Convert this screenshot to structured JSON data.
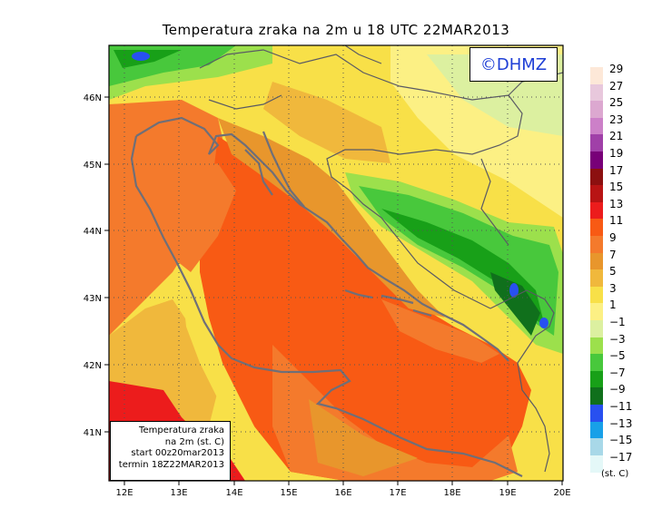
{
  "title": "Temperatura zraka na 2m u 18 UTC 22MAR2013",
  "logo": "©DHMZ",
  "info_box": {
    "lines": [
      "Temperatura zraka",
      "na 2m (st. C)",
      "start 00z20mar2013",
      "termin 18Z22MAR2013"
    ]
  },
  "legend": {
    "labels": [
      "29",
      "27",
      "25",
      "23",
      "21",
      "19",
      "17",
      "15",
      "13",
      "11",
      "9",
      "7",
      "5",
      "3",
      "1",
      "−1",
      "−3",
      "−5",
      "−7",
      "−9",
      "−11",
      "−13",
      "−15",
      "−17"
    ],
    "colors": [
      "#fde8d8",
      "#e8c8dc",
      "#dca8d0",
      "#cc80c8",
      "#a040a8",
      "#780078",
      "#8c1010",
      "#b81414",
      "#ec1c1c",
      "#f85a14",
      "#f47a2c",
      "#e8962c",
      "#f0b83c",
      "#f8e048",
      "#fcf084",
      "#dcf0a0",
      "#9ce04c",
      "#48c83c",
      "#18a018",
      "#10701c",
      "#2850f0",
      "#18a0e8",
      "#a8d8e8",
      "#e4f8f8"
    ],
    "unit": "(st. C)"
  },
  "axes": {
    "x_ticks": [
      "12E",
      "13E",
      "14E",
      "15E",
      "16E",
      "17E",
      "18E",
      "19E",
      "20E"
    ],
    "y_ticks": [
      "46N",
      "45N",
      "44N",
      "43N",
      "42N",
      "41N"
    ],
    "lon_range": [
      11.7,
      20.0
    ],
    "lat_range": [
      40.3,
      46.7
    ]
  }
}
